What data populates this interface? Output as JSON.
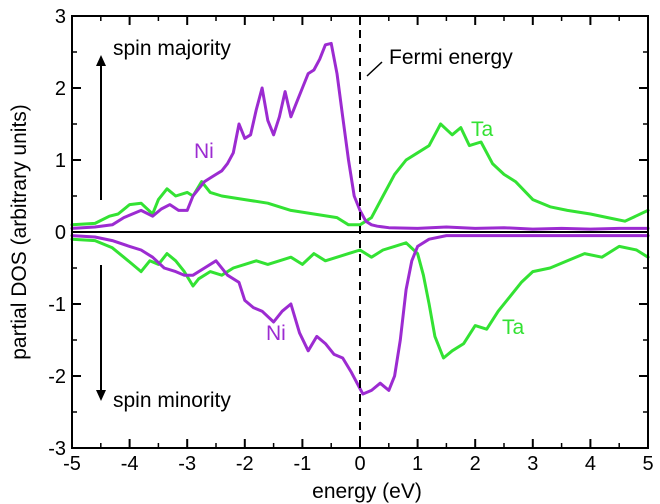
{
  "chart_data": {
    "type": "line",
    "xlabel": "energy (eV)",
    "ylabel": "partial DOS (arbitrary units)",
    "xlim": [
      -5,
      5
    ],
    "ylim": [
      -3,
      3
    ],
    "x_ticks": [
      -5,
      -4,
      -3,
      -2,
      -1,
      0,
      1,
      2,
      3,
      4,
      5
    ],
    "y_ticks": [
      -3,
      -2,
      -1,
      0,
      1,
      2,
      3
    ],
    "colors": {
      "Ni": "#9c2bd1",
      "Ta": "#33e233",
      "axes": "#000000"
    },
    "annotations": {
      "spin_majority": "spin majority",
      "spin_minority": "spin minority",
      "fermi": "Fermi energy",
      "ni_up": "Ni",
      "ta_up": "Ta",
      "ni_down": "Ni",
      "ta_down": "Ta"
    },
    "series": [
      {
        "name": "Ni",
        "channel": "spin majority",
        "x": [
          -5.0,
          -4.6,
          -4.3,
          -4.1,
          -3.8,
          -3.6,
          -3.45,
          -3.3,
          -3.15,
          -3.0,
          -2.9,
          -2.8,
          -2.7,
          -2.6,
          -2.5,
          -2.4,
          -2.3,
          -2.2,
          -2.1,
          -2.0,
          -1.9,
          -1.8,
          -1.7,
          -1.6,
          -1.5,
          -1.4,
          -1.3,
          -1.2,
          -1.1,
          -1.0,
          -0.9,
          -0.8,
          -0.7,
          -0.6,
          -0.5,
          -0.4,
          -0.3,
          -0.2,
          -0.1,
          0.0,
          0.1,
          0.2,
          0.3,
          0.5,
          1.0,
          1.5,
          2.0,
          2.5,
          3.0,
          3.5,
          4.0,
          4.5,
          5.0
        ],
        "y": [
          0.05,
          0.07,
          0.1,
          0.2,
          0.3,
          0.22,
          0.32,
          0.38,
          0.3,
          0.3,
          0.5,
          0.6,
          0.7,
          0.75,
          0.8,
          0.85,
          0.95,
          1.1,
          1.5,
          1.3,
          1.35,
          1.7,
          2.0,
          1.55,
          1.35,
          1.6,
          1.95,
          1.6,
          1.8,
          2.0,
          2.2,
          2.25,
          2.4,
          2.6,
          2.62,
          2.2,
          1.6,
          1.0,
          0.5,
          0.3,
          0.15,
          0.1,
          0.08,
          0.06,
          0.05,
          0.07,
          0.05,
          0.06,
          0.04,
          0.05,
          0.04,
          0.05,
          0.05
        ]
      },
      {
        "name": "Ta",
        "channel": "spin majority",
        "x": [
          -5.0,
          -4.6,
          -4.35,
          -4.2,
          -4.0,
          -3.8,
          -3.6,
          -3.5,
          -3.35,
          -3.2,
          -3.0,
          -2.9,
          -2.75,
          -2.6,
          -2.4,
          -2.0,
          -1.6,
          -1.2,
          -0.8,
          -0.4,
          -0.2,
          0.0,
          0.2,
          0.4,
          0.6,
          0.8,
          1.0,
          1.2,
          1.4,
          1.6,
          1.75,
          1.9,
          2.1,
          2.3,
          2.5,
          2.7,
          3.0,
          3.3,
          3.6,
          4.0,
          4.3,
          4.6,
          5.0
        ],
        "y": [
          0.1,
          0.12,
          0.22,
          0.25,
          0.38,
          0.4,
          0.25,
          0.45,
          0.6,
          0.5,
          0.55,
          0.5,
          0.7,
          0.55,
          0.5,
          0.45,
          0.4,
          0.3,
          0.25,
          0.2,
          0.1,
          0.1,
          0.2,
          0.5,
          0.8,
          1.0,
          1.1,
          1.2,
          1.5,
          1.35,
          1.45,
          1.2,
          1.25,
          0.95,
          0.8,
          0.7,
          0.45,
          0.35,
          0.3,
          0.25,
          0.2,
          0.15,
          0.3
        ]
      },
      {
        "name": "Ni",
        "channel": "spin minority",
        "x": [
          -5.0,
          -4.6,
          -4.3,
          -4.0,
          -3.8,
          -3.6,
          -3.4,
          -3.2,
          -3.05,
          -2.9,
          -2.7,
          -2.5,
          -2.3,
          -2.1,
          -2.0,
          -1.85,
          -1.7,
          -1.5,
          -1.35,
          -1.2,
          -1.05,
          -0.9,
          -0.75,
          -0.6,
          -0.45,
          -0.3,
          -0.15,
          -0.05,
          0.05,
          0.2,
          0.35,
          0.5,
          0.6,
          0.7,
          0.8,
          0.9,
          1.0,
          1.2,
          1.5,
          2.0,
          2.5,
          3.0,
          3.5,
          4.0,
          4.5,
          5.0
        ],
        "y": [
          -0.05,
          -0.07,
          -0.12,
          -0.2,
          -0.25,
          -0.35,
          -0.5,
          -0.55,
          -0.6,
          -0.6,
          -0.5,
          -0.4,
          -0.6,
          -0.7,
          -0.95,
          -1.05,
          -1.1,
          -1.25,
          -1.1,
          -1.0,
          -1.4,
          -1.65,
          -1.45,
          -1.55,
          -1.7,
          -1.75,
          -1.95,
          -2.1,
          -2.25,
          -2.2,
          -2.1,
          -2.2,
          -2.0,
          -1.5,
          -0.8,
          -0.4,
          -0.2,
          -0.1,
          -0.05,
          -0.05,
          -0.05,
          -0.05,
          -0.05,
          -0.05,
          -0.05,
          -0.05
        ]
      },
      {
        "name": "Ta",
        "channel": "spin minority",
        "x": [
          -5.0,
          -4.6,
          -4.3,
          -4.1,
          -3.95,
          -3.8,
          -3.65,
          -3.5,
          -3.35,
          -3.2,
          -3.05,
          -2.9,
          -2.8,
          -2.6,
          -2.4,
          -2.2,
          -2.0,
          -1.8,
          -1.6,
          -1.4,
          -1.2,
          -1.0,
          -0.8,
          -0.6,
          -0.4,
          -0.2,
          0.0,
          0.2,
          0.4,
          0.6,
          0.8,
          1.0,
          1.1,
          1.2,
          1.3,
          1.45,
          1.6,
          1.8,
          2.0,
          2.2,
          2.4,
          2.6,
          2.8,
          3.0,
          3.3,
          3.6,
          3.9,
          4.2,
          4.5,
          4.8,
          5.0
        ],
        "y": [
          -0.1,
          -0.12,
          -0.22,
          -0.35,
          -0.45,
          -0.55,
          -0.4,
          -0.45,
          -0.3,
          -0.4,
          -0.55,
          -0.75,
          -0.65,
          -0.55,
          -0.6,
          -0.5,
          -0.45,
          -0.4,
          -0.45,
          -0.4,
          -0.35,
          -0.45,
          -0.3,
          -0.4,
          -0.35,
          -0.3,
          -0.25,
          -0.35,
          -0.25,
          -0.2,
          -0.15,
          -0.3,
          -0.6,
          -1.0,
          -1.45,
          -1.75,
          -1.65,
          -1.55,
          -1.3,
          -1.35,
          -1.1,
          -0.9,
          -0.7,
          -0.55,
          -0.5,
          -0.4,
          -0.3,
          -0.35,
          -0.2,
          -0.25,
          -0.35
        ]
      }
    ]
  }
}
